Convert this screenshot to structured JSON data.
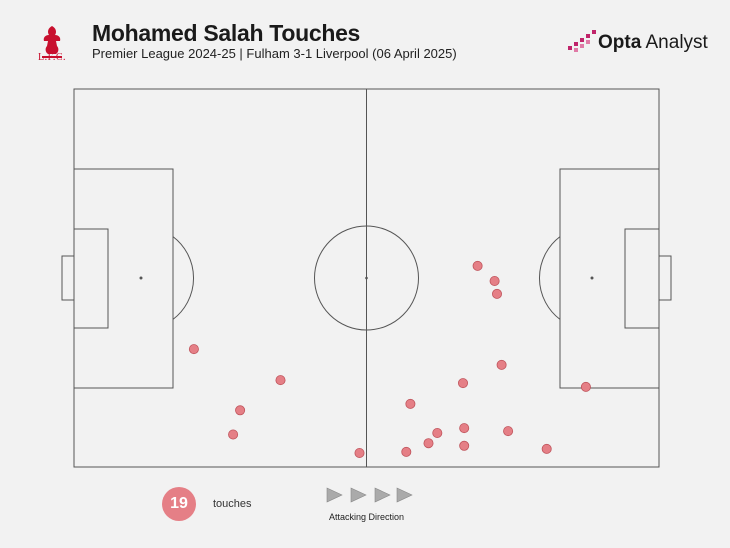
{
  "header": {
    "title": "Mohamed Salah Touches",
    "subtitle": "Premier League 2024-25 | Fulham 3-1 Liverpool (06 April 2025)",
    "club_text": "L.F.C.",
    "brand_bold": "Opta",
    "brand_rest": " Analyst"
  },
  "legend": {
    "count": "19",
    "count_label": "touches",
    "direction_label": "Attacking Direction"
  },
  "colors": {
    "dot_fill": "#e57f86",
    "dot_stroke": "#c0545c",
    "club_red": "#c8102e",
    "brand_pink": "#c0246a",
    "arrow_gray": "#aaaaaa"
  },
  "chart_data": {
    "type": "scatter",
    "title": "Mohamed Salah Touches",
    "xlabel": "",
    "ylabel": "",
    "xlim": [
      0,
      100
    ],
    "ylim": [
      0,
      100
    ],
    "attacking_direction": "left-to-right",
    "points": [
      {
        "x": 20.5,
        "y": 31.2
      },
      {
        "x": 35.3,
        "y": 23.0
      },
      {
        "x": 28.4,
        "y": 15.0
      },
      {
        "x": 27.2,
        "y": 8.6
      },
      {
        "x": 48.8,
        "y": 3.7
      },
      {
        "x": 69.0,
        "y": 53.2
      },
      {
        "x": 71.9,
        "y": 49.2
      },
      {
        "x": 72.3,
        "y": 45.8
      },
      {
        "x": 73.1,
        "y": 27.0
      },
      {
        "x": 66.5,
        "y": 22.2
      },
      {
        "x": 57.5,
        "y": 16.7
      },
      {
        "x": 87.5,
        "y": 21.2
      },
      {
        "x": 62.1,
        "y": 9.0
      },
      {
        "x": 66.7,
        "y": 10.3
      },
      {
        "x": 74.2,
        "y": 9.5
      },
      {
        "x": 60.6,
        "y": 6.3
      },
      {
        "x": 66.7,
        "y": 5.6
      },
      {
        "x": 56.8,
        "y": 4.0
      },
      {
        "x": 80.8,
        "y": 4.8
      }
    ]
  }
}
